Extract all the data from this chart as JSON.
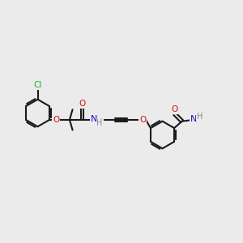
{
  "background_color": "#ebebeb",
  "bond_color": "#1a1a1a",
  "Cl_color": "#22aa22",
  "O_color": "#cc1111",
  "N_color": "#1111cc",
  "H_color": "#888888",
  "figsize": [
    3.0,
    3.0
  ],
  "dpi": 100,
  "xlim": [
    0,
    10
  ],
  "ylim": [
    0,
    10
  ]
}
